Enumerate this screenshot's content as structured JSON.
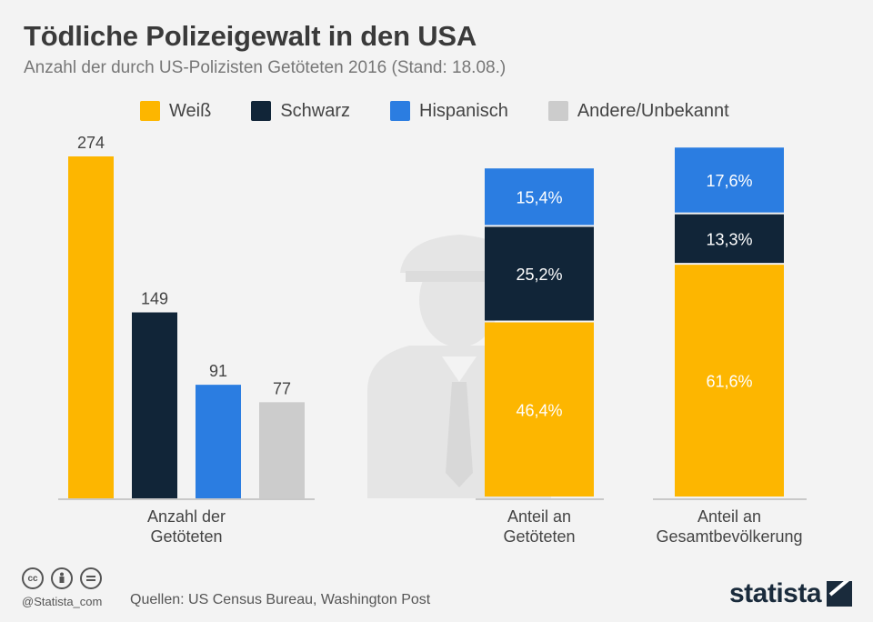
{
  "title": "Tödliche Polizeigewalt in den USA",
  "subtitle": "Anzahl der durch US-Polizisten Getöteten 2016 (Stand: 18.08.)",
  "legend": [
    {
      "label": "Weiß",
      "color": "#fdb600"
    },
    {
      "label": "Schwarz",
      "color": "#112538"
    },
    {
      "label": "Hispanisch",
      "color": "#2b7de1"
    },
    {
      "label": "Andere/Unbekannt",
      "color": "#cccccc"
    }
  ],
  "footer": {
    "handle": "@Statista_com",
    "sources": "Quellen: US Census Bureau, Washington Post",
    "brand": "statista",
    "icons": [
      "cc-icon",
      "by-icon",
      "nd-icon"
    ]
  },
  "chart_data": [
    {
      "type": "bar",
      "xlabel_lines": [
        "Anzahl der",
        "Getöteten"
      ],
      "categories": [
        "Weiß",
        "Schwarz",
        "Hispanisch",
        "Andere/Unbekannt"
      ],
      "values": [
        274,
        149,
        91,
        77
      ],
      "value_labels": [
        "274",
        "149",
        "91",
        "77"
      ],
      "colors": [
        "#fdb600",
        "#112538",
        "#2b7de1",
        "#cccccc"
      ],
      "ylim": [
        0,
        274
      ]
    },
    {
      "type": "bar",
      "stacked": true,
      "bar_labels": [
        {
          "lines": [
            "Anteil an",
            "Getöteten"
          ]
        },
        {
          "lines": [
            "Anteil an",
            "Gesamtbevölkerung"
          ]
        }
      ],
      "series": [
        {
          "category": "Weiß",
          "color": "#fdb600",
          "values": [
            46.4,
            61.6
          ],
          "labels": [
            "46,4%",
            "61,6%"
          ]
        },
        {
          "category": "Schwarz",
          "color": "#112538",
          "values": [
            25.2,
            13.3
          ],
          "labels": [
            "25,2%",
            "13,3%"
          ]
        },
        {
          "category": "Hispanisch",
          "color": "#2b7de1",
          "values": [
            15.4,
            17.6
          ],
          "labels": [
            "15,4%",
            "17,6%"
          ]
        }
      ],
      "ylim": [
        0,
        100
      ]
    }
  ]
}
